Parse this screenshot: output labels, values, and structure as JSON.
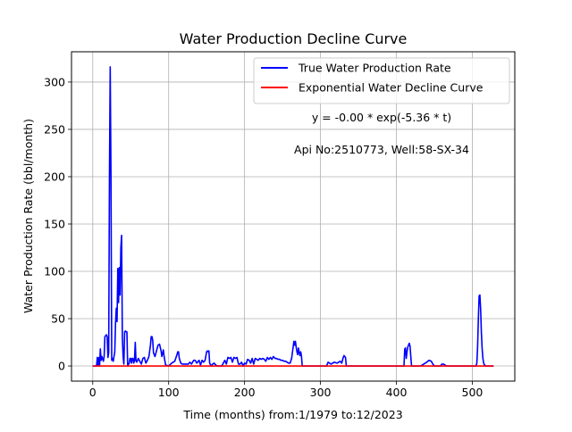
{
  "chart_data": {
    "type": "line",
    "title": "Water Production Decline Curve",
    "xlabel": "Time (months) from:1/1979 to:12/2023",
    "ylabel": "Water Production Rate (bbl/month)",
    "xlim": [
      -28,
      556
    ],
    "ylim": [
      -16,
      332
    ],
    "x_ticks": [
      0,
      100,
      200,
      300,
      400,
      500
    ],
    "y_ticks": [
      0,
      50,
      100,
      150,
      200,
      250,
      300
    ],
    "grid": true,
    "legend_position": "top-right",
    "annotations": [
      "y = -0.00 * exp(-5.36 * t)",
      "Api No:2510773, Well:58-SX-34"
    ],
    "colors": {
      "true_rate": "#0000ff",
      "decline_curve": "#ff0000",
      "grid": "#b0b0b0"
    },
    "series": [
      {
        "name": "True Water Production Rate",
        "color": "#0000ff",
        "points": [
          [
            0,
            0
          ],
          [
            5,
            0
          ],
          [
            6,
            9
          ],
          [
            7,
            1
          ],
          [
            8,
            9
          ],
          [
            9,
            0
          ],
          [
            10,
            18
          ],
          [
            11,
            6
          ],
          [
            12,
            10
          ],
          [
            14,
            5
          ],
          [
            15,
            10
          ],
          [
            16,
            31
          ],
          [
            17,
            32
          ],
          [
            18,
            33
          ],
          [
            19,
            31
          ],
          [
            20,
            9
          ],
          [
            21,
            14
          ],
          [
            22,
            200
          ],
          [
            23,
            316
          ],
          [
            24,
            200
          ],
          [
            25,
            6
          ],
          [
            26,
            8
          ],
          [
            27,
            5
          ],
          [
            28,
            10
          ],
          [
            29,
            15
          ],
          [
            30,
            45
          ],
          [
            31,
            61
          ],
          [
            32,
            47
          ],
          [
            33,
            103
          ],
          [
            34,
            67
          ],
          [
            35,
            104
          ],
          [
            36,
            75
          ],
          [
            37,
            125
          ],
          [
            38,
            138
          ],
          [
            39,
            30
          ],
          [
            40,
            10
          ],
          [
            41,
            2
          ],
          [
            42,
            36
          ],
          [
            43,
            37
          ],
          [
            44,
            36
          ],
          [
            45,
            36
          ],
          [
            46,
            0
          ],
          [
            48,
            3
          ],
          [
            49,
            8
          ],
          [
            50,
            8
          ],
          [
            51,
            3
          ],
          [
            52,
            8
          ],
          [
            53,
            8
          ],
          [
            54,
            3
          ],
          [
            55,
            6
          ],
          [
            56,
            25
          ],
          [
            57,
            5
          ],
          [
            58,
            4
          ],
          [
            60,
            8
          ],
          [
            62,
            5
          ],
          [
            64,
            2
          ],
          [
            66,
            8
          ],
          [
            68,
            9
          ],
          [
            70,
            3
          ],
          [
            72,
            6
          ],
          [
            74,
            10
          ],
          [
            76,
            22
          ],
          [
            77,
            31
          ],
          [
            78,
            31
          ],
          [
            79,
            27
          ],
          [
            80,
            14
          ],
          [
            82,
            10
          ],
          [
            84,
            16
          ],
          [
            86,
            22
          ],
          [
            88,
            23
          ],
          [
            90,
            16
          ],
          [
            91,
            10
          ],
          [
            93,
            17
          ],
          [
            94,
            10
          ],
          [
            96,
            1
          ],
          [
            100,
            0
          ],
          [
            104,
            3
          ],
          [
            108,
            5
          ],
          [
            111,
            12
          ],
          [
            112,
            15
          ],
          [
            113,
            15
          ],
          [
            114,
            8
          ],
          [
            116,
            3
          ],
          [
            118,
            2
          ],
          [
            122,
            2
          ],
          [
            126,
            2
          ],
          [
            128,
            4
          ],
          [
            130,
            2
          ],
          [
            133,
            6
          ],
          [
            135,
            6
          ],
          [
            137,
            3
          ],
          [
            140,
            6
          ],
          [
            142,
            1
          ],
          [
            144,
            6
          ],
          [
            146,
            4
          ],
          [
            148,
            6
          ],
          [
            150,
            15
          ],
          [
            151,
            16
          ],
          [
            152,
            15
          ],
          [
            153,
            16
          ],
          [
            154,
            3
          ],
          [
            156,
            0
          ],
          [
            158,
            2
          ],
          [
            160,
            3
          ],
          [
            162,
            1
          ],
          [
            164,
            0
          ],
          [
            170,
            0
          ],
          [
            172,
            3
          ],
          [
            174,
            6
          ],
          [
            176,
            2
          ],
          [
            178,
            9
          ],
          [
            180,
            8
          ],
          [
            182,
            9
          ],
          [
            184,
            4
          ],
          [
            186,
            9
          ],
          [
            188,
            8
          ],
          [
            190,
            9
          ],
          [
            192,
            2
          ],
          [
            194,
            2
          ],
          [
            196,
            4
          ],
          [
            198,
            0
          ],
          [
            200,
            3
          ],
          [
            202,
            2
          ],
          [
            204,
            7
          ],
          [
            206,
            6
          ],
          [
            208,
            3
          ],
          [
            210,
            8
          ],
          [
            212,
            2
          ],
          [
            214,
            8
          ],
          [
            216,
            7
          ],
          [
            218,
            6
          ],
          [
            220,
            8
          ],
          [
            222,
            7
          ],
          [
            224,
            8
          ],
          [
            226,
            7
          ],
          [
            228,
            5
          ],
          [
            230,
            9
          ],
          [
            232,
            7
          ],
          [
            234,
            9
          ],
          [
            236,
            7
          ],
          [
            238,
            10
          ],
          [
            240,
            8
          ],
          [
            242,
            8
          ],
          [
            244,
            7
          ],
          [
            246,
            7
          ],
          [
            248,
            6
          ],
          [
            250,
            6
          ],
          [
            252,
            5
          ],
          [
            254,
            5
          ],
          [
            256,
            4
          ],
          [
            258,
            3
          ],
          [
            260,
            3
          ],
          [
            262,
            8
          ],
          [
            264,
            20
          ],
          [
            265,
            26
          ],
          [
            266,
            22
          ],
          [
            267,
            26
          ],
          [
            268,
            20
          ],
          [
            269,
            15
          ],
          [
            270,
            12
          ],
          [
            271,
            19
          ],
          [
            272,
            14
          ],
          [
            273,
            11
          ],
          [
            274,
            15
          ],
          [
            275,
            10
          ],
          [
            276,
            0
          ],
          [
            278,
            0
          ],
          [
            300,
            0
          ],
          [
            308,
            0
          ],
          [
            310,
            4
          ],
          [
            314,
            2
          ],
          [
            318,
            4
          ],
          [
            322,
            3
          ],
          [
            326,
            5
          ],
          [
            328,
            3
          ],
          [
            330,
            9
          ],
          [
            331,
            11
          ],
          [
            333,
            9
          ],
          [
            334,
            0
          ],
          [
            336,
            0
          ],
          [
            400,
            0
          ],
          [
            410,
            0
          ],
          [
            411,
            18
          ],
          [
            412,
            19
          ],
          [
            413,
            8
          ],
          [
            414,
            15
          ],
          [
            415,
            20
          ],
          [
            416,
            22
          ],
          [
            417,
            24
          ],
          [
            418,
            21
          ],
          [
            419,
            10
          ],
          [
            420,
            0
          ],
          [
            422,
            0
          ],
          [
            432,
            0
          ],
          [
            436,
            2
          ],
          [
            440,
            4
          ],
          [
            443,
            6
          ],
          [
            446,
            5
          ],
          [
            448,
            2
          ],
          [
            450,
            0
          ],
          [
            458,
            0
          ],
          [
            460,
            2
          ],
          [
            462,
            2
          ],
          [
            466,
            0
          ],
          [
            505,
            0
          ],
          [
            506,
            3
          ],
          [
            507,
            20
          ],
          [
            508,
            50
          ],
          [
            509,
            74
          ],
          [
            510,
            75
          ],
          [
            511,
            60
          ],
          [
            512,
            35
          ],
          [
            513,
            18
          ],
          [
            514,
            8
          ],
          [
            515,
            3
          ],
          [
            516,
            1
          ],
          [
            518,
            0
          ],
          [
            528,
            0
          ]
        ]
      },
      {
        "name": "Exponential Water Decline Curve",
        "color": "#ff0000",
        "points": [
          [
            0,
            0
          ],
          [
            528,
            0
          ]
        ]
      }
    ]
  }
}
